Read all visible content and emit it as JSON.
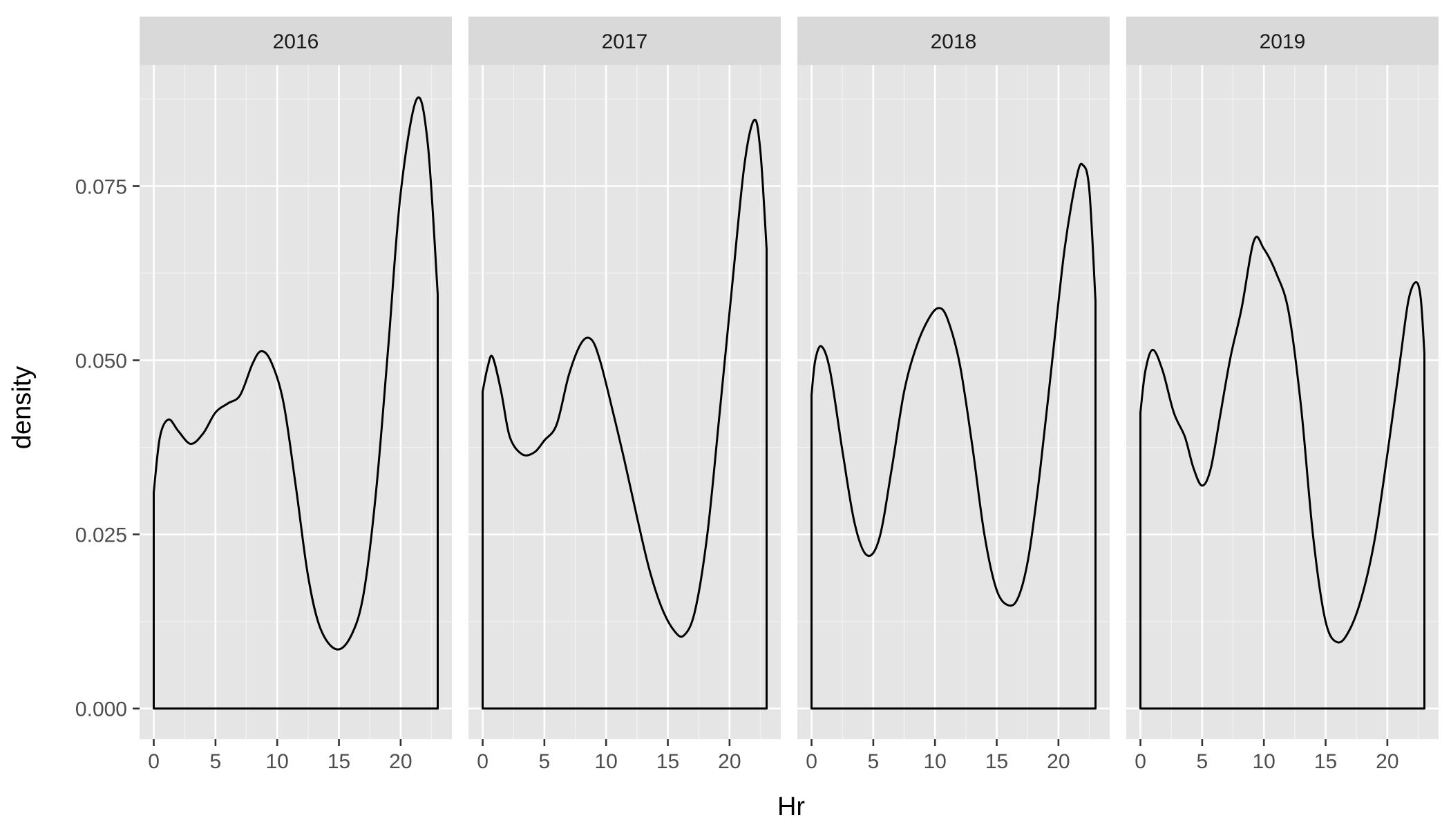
{
  "chart_data": {
    "type": "line",
    "facet_by": "year",
    "facets": [
      {
        "label": "2016",
        "x": [
          0,
          0.5,
          1.2,
          2,
          3,
          4,
          5,
          6,
          7,
          8,
          8.7,
          9.5,
          10.5,
          11.5,
          12.5,
          13.5,
          14.8,
          16,
          17,
          18,
          19,
          20,
          21.3,
          22.2,
          23
        ],
        "y": [
          0.031,
          0.039,
          0.0415,
          0.0398,
          0.038,
          0.0395,
          0.0425,
          0.0438,
          0.045,
          0.0495,
          0.0513,
          0.0498,
          0.044,
          0.032,
          0.019,
          0.0115,
          0.0085,
          0.0105,
          0.0165,
          0.031,
          0.052,
          0.074,
          0.0875,
          0.081,
          0.0595
        ]
      },
      {
        "label": "2017",
        "x": [
          0,
          0.4,
          0.8,
          1.5,
          2.2,
          3.2,
          4.2,
          5,
          6,
          7,
          8,
          8.8,
          9.5,
          10.5,
          11.5,
          12.5,
          13.5,
          14.5,
          15.5,
          16.3,
          17.2,
          18.2,
          19.2,
          20.2,
          21.2,
          22,
          22.5,
          23
        ],
        "y": [
          0.0455,
          0.049,
          0.0505,
          0.0455,
          0.039,
          0.0365,
          0.0368,
          0.0385,
          0.0408,
          0.048,
          0.0525,
          0.053,
          0.05,
          0.043,
          0.0355,
          0.0275,
          0.02,
          0.0145,
          0.0112,
          0.0105,
          0.014,
          0.025,
          0.0425,
          0.0605,
          0.078,
          0.0845,
          0.08,
          0.066
        ]
      },
      {
        "label": "2018",
        "x": [
          0,
          0.3,
          0.8,
          1.5,
          2.5,
          3.5,
          4.5,
          5.5,
          6.5,
          7.5,
          8.5,
          9.5,
          10.3,
          11,
          12,
          13,
          14,
          15,
          16,
          16.8,
          17.6,
          18.5,
          19.5,
          20.5,
          21.5,
          22,
          22.5,
          23
        ],
        "y": [
          0.045,
          0.05,
          0.052,
          0.0485,
          0.037,
          0.0265,
          0.022,
          0.0245,
          0.0345,
          0.0455,
          0.052,
          0.056,
          0.0575,
          0.056,
          0.0495,
          0.038,
          0.025,
          0.017,
          0.0148,
          0.0162,
          0.022,
          0.034,
          0.05,
          0.066,
          0.0765,
          0.078,
          0.0745,
          0.0585
        ]
      },
      {
        "label": "2019",
        "x": [
          0,
          0.4,
          1,
          1.8,
          2.7,
          3.6,
          4.3,
          5,
          5.7,
          6.5,
          7.3,
          8.2,
          9.2,
          10,
          11,
          12,
          13,
          14,
          15,
          16,
          17,
          18,
          19,
          20,
          21,
          21.7,
          22.3,
          22.7,
          23
        ],
        "y": [
          0.0425,
          0.0485,
          0.0515,
          0.0485,
          0.0425,
          0.039,
          0.0345,
          0.032,
          0.0345,
          0.0425,
          0.0505,
          0.0575,
          0.0672,
          0.066,
          0.0625,
          0.057,
          0.0435,
          0.0245,
          0.0125,
          0.0095,
          0.0115,
          0.0165,
          0.0245,
          0.0365,
          0.0495,
          0.0585,
          0.0612,
          0.059,
          0.051
        ]
      }
    ],
    "xlabel": "Hr",
    "ylabel": "density",
    "xlim": [
      -1.15,
      24.15
    ],
    "ylim": [
      -0.0044,
      0.0924
    ],
    "x_ticks": [
      0,
      5,
      10,
      15,
      20
    ],
    "y_ticks": [
      0,
      0.025,
      0.05,
      0.075
    ],
    "y_tick_labels": [
      "0.000",
      "0.025",
      "0.050",
      "0.075"
    ],
    "x_minor_ticks": [
      2.5,
      7.5,
      12.5,
      17.5,
      22.5
    ],
    "y_minor_ticks": [
      0.0125,
      0.0375,
      0.0625,
      0.0875
    ],
    "grid": true,
    "legend": "none"
  }
}
